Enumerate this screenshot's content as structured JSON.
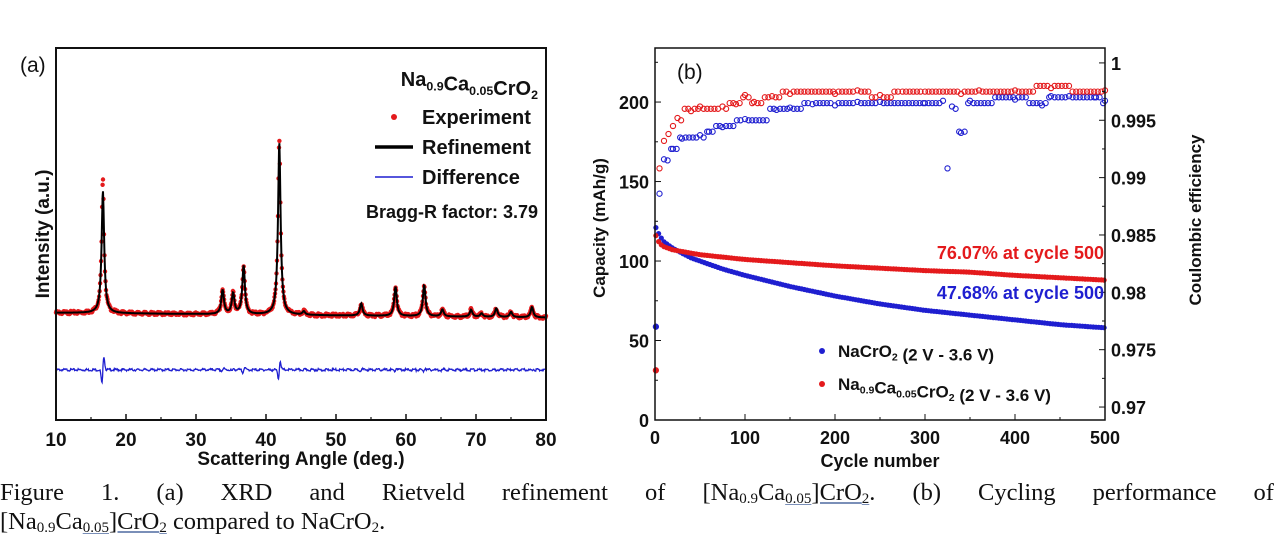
{
  "chart_data": [
    {
      "panel_label": "(a)",
      "type": "line",
      "xlabel": "Scattering Angle (deg.)",
      "ylabel": "Intensity (a.u.)",
      "xlim": [
        10,
        80
      ],
      "xticks": [
        "10",
        "20",
        "30",
        "40",
        "50",
        "60",
        "70",
        "80"
      ],
      "yticks_labeled": false,
      "annotation_title": "Na0.9Ca0.05CrO2",
      "annotation_r": "Bragg-R factor: 3.79",
      "legend": {
        "position": "top-right",
        "entries": [
          {
            "label": "Experiment",
            "marker": "dot",
            "color": "#e41a1c"
          },
          {
            "label": "Refinement",
            "marker": "line",
            "color": "#000000"
          },
          {
            "label": "Difference",
            "marker": "line",
            "color": "#1f1fd0"
          }
        ]
      },
      "peaks": [
        [
          16.7,
          71
        ],
        [
          33.8,
          14
        ],
        [
          35.3,
          12
        ],
        [
          36.8,
          28
        ],
        [
          41.9,
          100
        ],
        [
          45.4,
          2
        ],
        [
          53.6,
          7
        ],
        [
          58.5,
          17
        ],
        [
          62.6,
          18
        ],
        [
          65.2,
          4
        ],
        [
          69.3,
          4
        ],
        [
          70.8,
          2
        ],
        [
          72.9,
          5
        ],
        [
          75.0,
          3
        ],
        [
          78.0,
          6
        ]
      ],
      "difference_offset": -33
    },
    {
      "panel_label": "(b)",
      "type": "scatter",
      "xlabel": "Cycle number",
      "ylabel": "Capacity (mAh/g)",
      "y2label": "Coulombic efficiency",
      "xlim": [
        0,
        500
      ],
      "ylim": [
        0,
        234
      ],
      "y2lim": [
        0.96887,
        1.0013
      ],
      "xticks": [
        "0",
        "100",
        "200",
        "300",
        "400",
        "500"
      ],
      "yticks": [
        "0",
        "50",
        "100",
        "150",
        "200"
      ],
      "y2ticks": [
        "0.97",
        "0.975",
        "0.98",
        "0.985",
        "0.99",
        "0.995",
        "1"
      ],
      "legend": {
        "position": "bottom-right",
        "entries": [
          {
            "label": "NaCrO2 (2 V - 3.6 V)",
            "color": "#1f1fd0"
          },
          {
            "label": "Na0.9Ca0.05CrO2 (2 V - 3.6 V)",
            "color": "#e41a1c"
          }
        ]
      },
      "annotations": [
        {
          "text": "76.07% at cycle 500",
          "color": "#e41a1c"
        },
        {
          "text": "47.68% at cycle 500",
          "color": "#1f1fd0"
        }
      ],
      "series": [
        {
          "name": "NaCrO2 (2 V - 3.6 V)",
          "axis": "capacity",
          "color": "#1f1fd0",
          "x": [
            1,
            5,
            10,
            20,
            30,
            40,
            50,
            75,
            100,
            150,
            200,
            250,
            300,
            350,
            400,
            450,
            500
          ],
          "y": [
            121,
            116,
            112,
            108,
            105,
            102,
            100,
            95,
            91,
            84,
            78,
            73,
            69,
            66,
            63,
            60,
            58
          ]
        },
        {
          "name": "Na0.9Ca0.05CrO2 (2 V - 3.6 V)",
          "axis": "capacity",
          "color": "#e41a1c",
          "x": [
            1,
            5,
            10,
            20,
            30,
            50,
            100,
            150,
            200,
            250,
            300,
            350,
            400,
            450,
            500
          ],
          "y": [
            116,
            111,
            109,
            107,
            106,
            104,
            101,
            99,
            97,
            95.5,
            94,
            93,
            91,
            89.5,
            88
          ]
        },
        {
          "name": "NaCrO2 CE",
          "axis": "coulombic",
          "color": "#1f1fd0",
          "x": [
            1,
            5,
            10,
            20,
            30,
            50,
            60,
            75,
            100,
            120,
            135,
            150,
            175,
            200,
            225,
            250,
            300,
            320,
            325,
            330,
            340,
            350,
            400,
            430,
            440,
            460,
            490,
            500
          ],
          "y": [
            0.977,
            0.9886,
            0.9916,
            0.9925,
            0.9934,
            0.9937,
            0.994,
            0.9944,
            0.9951,
            0.995,
            0.9959,
            0.9961,
            0.9964,
            0.9963,
            0.9966,
            0.9966,
            0.9965,
            0.9967,
            0.9908,
            0.9962,
            0.9939,
            0.9967,
            0.9968,
            0.9963,
            0.9971,
            0.9971,
            0.997,
            0.9967
          ]
        },
        {
          "name": "Na0.9Ca0.05CrO2 CE",
          "axis": "coulombic",
          "color": "#e41a1c",
          "x": [
            1,
            5,
            10,
            15,
            20,
            25,
            40,
            50,
            75,
            90,
            100,
            110,
            130,
            150,
            200,
            225,
            250,
            275,
            300,
            340,
            360,
            400,
            440,
            480,
            500
          ],
          "y": [
            0.9732,
            0.9908,
            0.9932,
            0.9938,
            0.9945,
            0.9952,
            0.9958,
            0.9962,
            0.9962,
            0.9964,
            0.9972,
            0.9966,
            0.9971,
            0.9973,
            0.9973,
            0.9976,
            0.9972,
            0.9975,
            0.9975,
            0.9973,
            0.9976,
            0.9976,
            0.9978,
            0.9975,
            0.9976
          ]
        }
      ]
    }
  ],
  "caption": {
    "line1": [
      "Figure",
      "1.",
      "(a)",
      "XRD",
      "and",
      "Rietveld",
      "refinement",
      "of",
      "[Na",
      "0.9",
      "Ca",
      "0.05",
      "]CrO",
      "2",
      ".",
      "(b)",
      "Cycling",
      "performance",
      "of"
    ],
    "line2": [
      "[Na",
      "0.9",
      "Ca",
      "0.05",
      "]CrO",
      "2",
      " compared to NaCrO",
      "2",
      "."
    ]
  }
}
